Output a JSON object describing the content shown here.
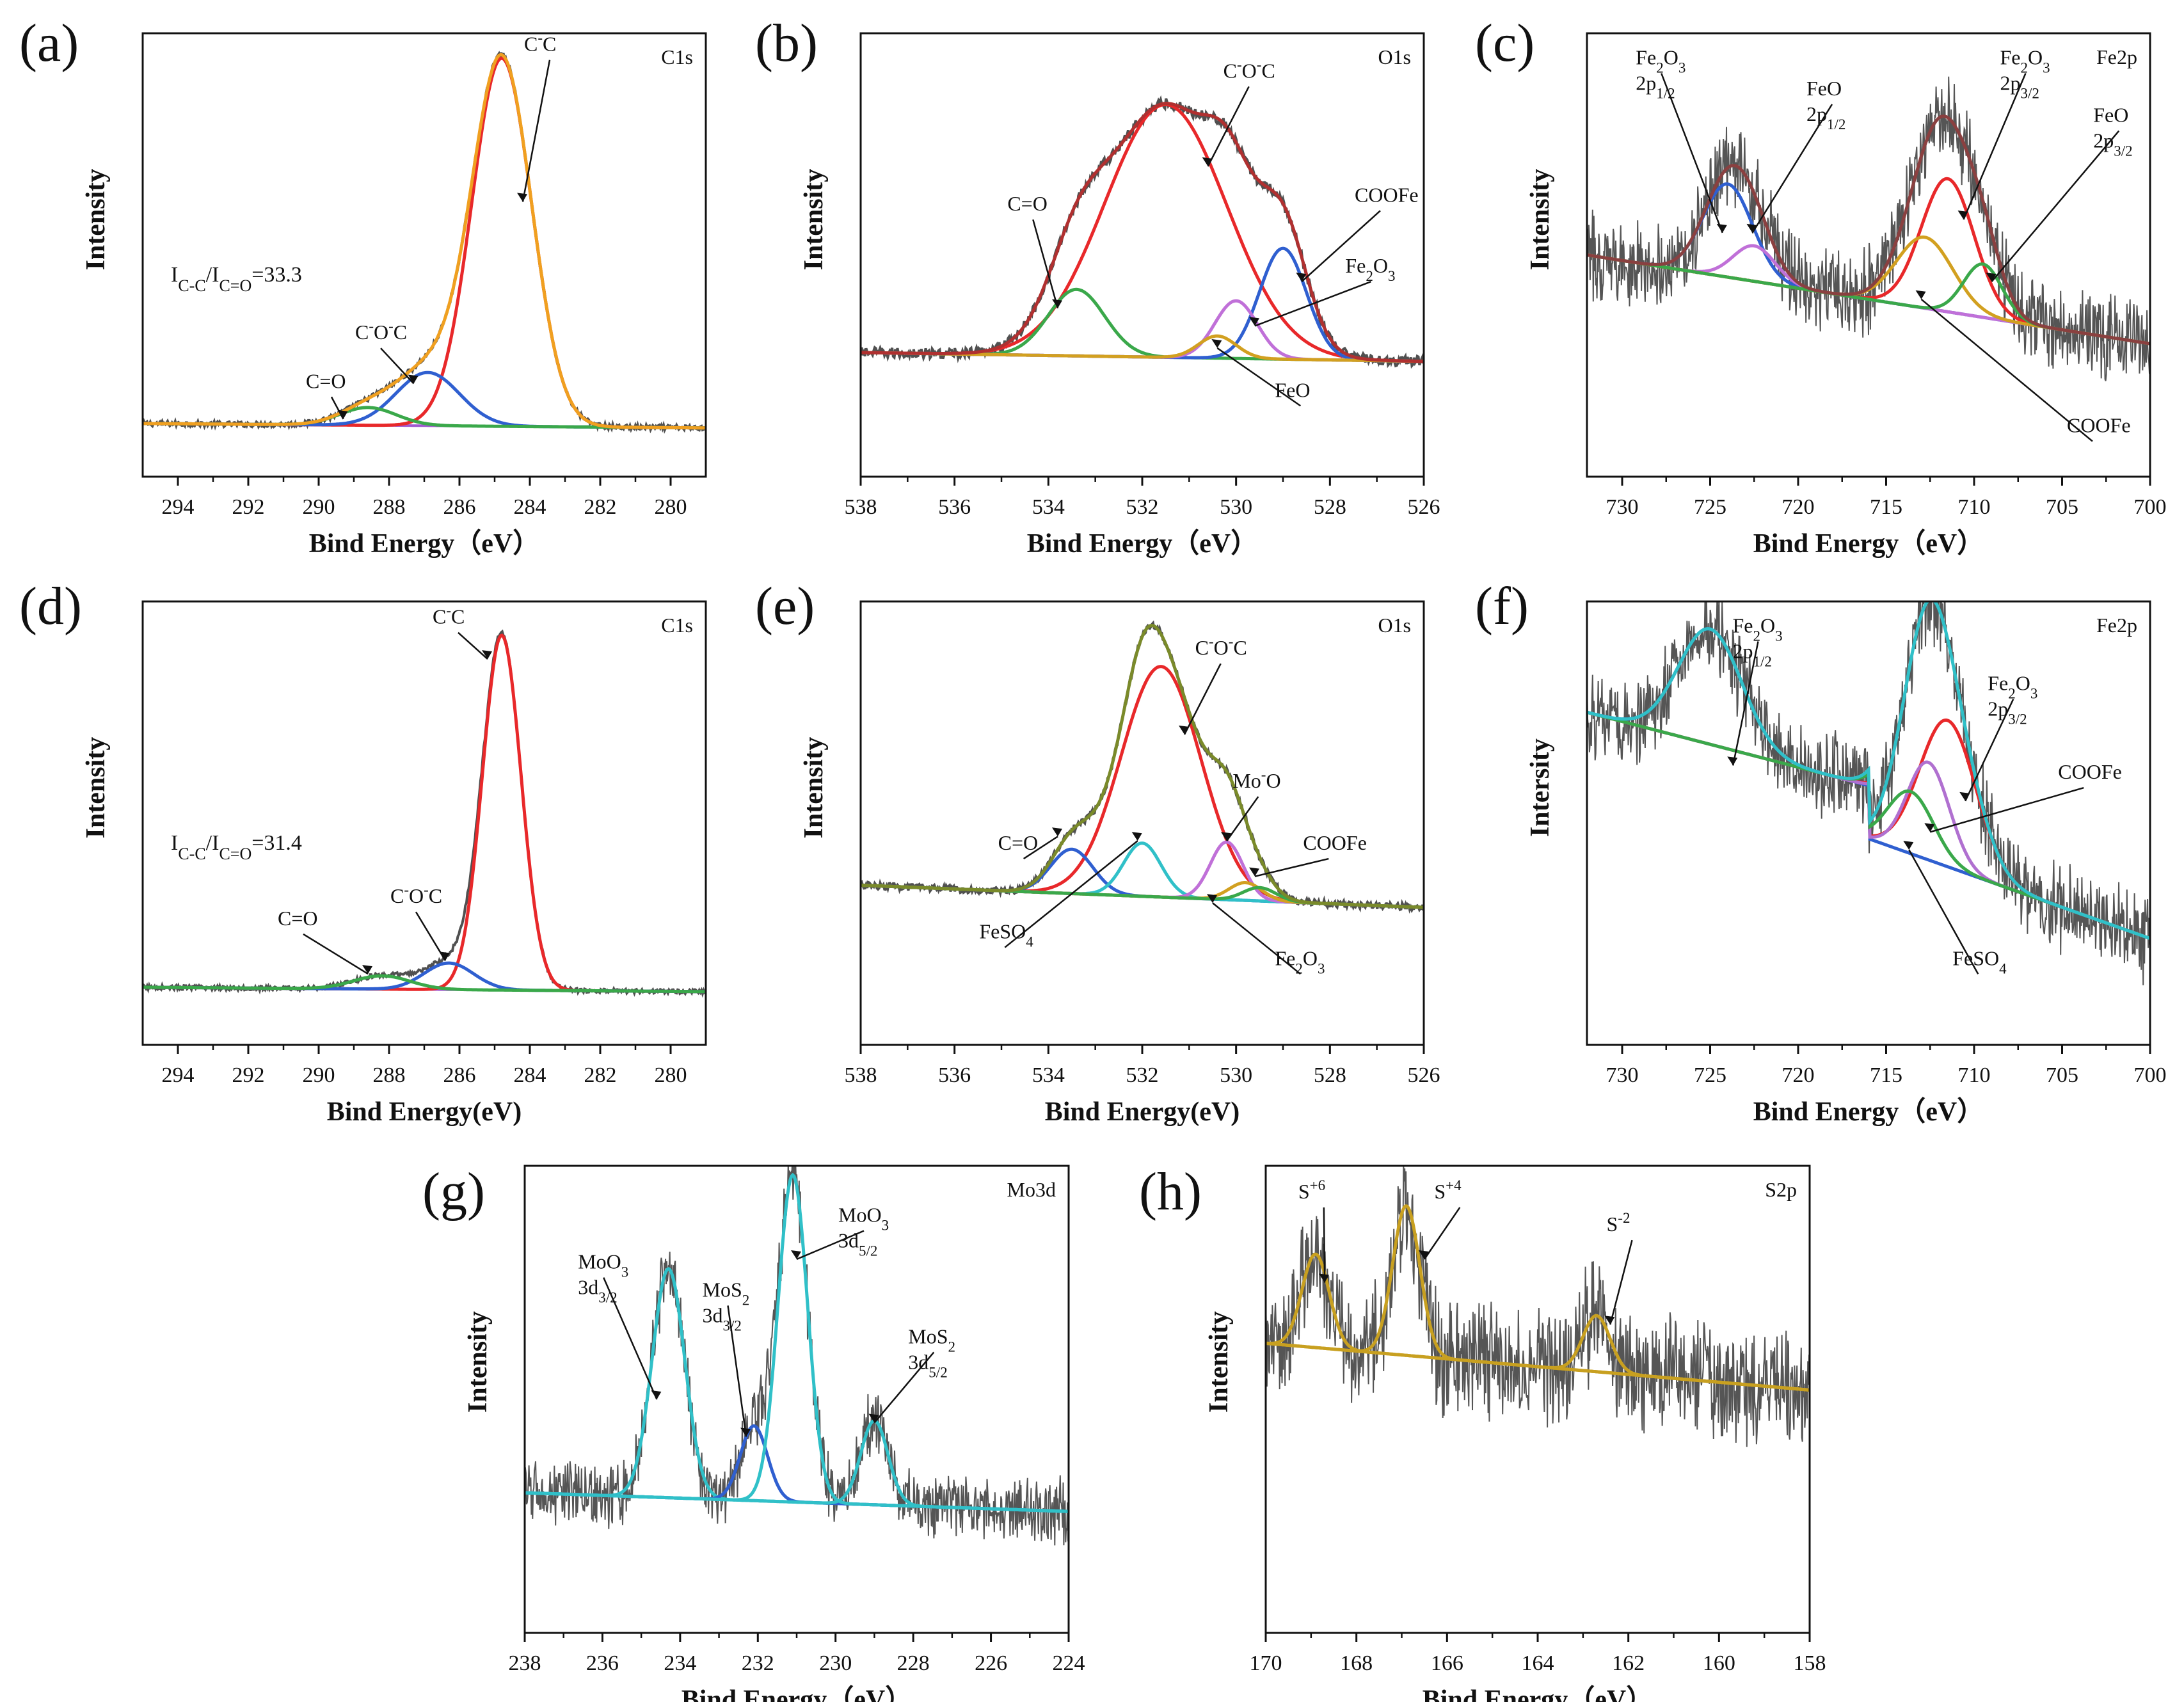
{
  "chart_data": [
    {
      "id": "a",
      "panel_label": "(a)",
      "type": "line",
      "corner_label": "C1s",
      "xlabel": "Bind Energy（eV）",
      "ylabel": "Intensity",
      "x_range": [
        295,
        279
      ],
      "x_ticks": [
        "294",
        "292",
        "290",
        "288",
        "286",
        "284",
        "282",
        "280"
      ],
      "y_range": [
        0,
        1
      ],
      "annotations": [
        {
          "text": "I",
          "sub": "C-C",
          "text2": "/I",
          "sub2": "C=O",
          "text3": "=33.3",
          "x": 294.2,
          "y": 0.44
        }
      ],
      "series": [
        {
          "name": "C-C",
          "type": "gauss",
          "center": 284.8,
          "amp": 0.83,
          "width": 0.85,
          "color": "#e8282a"
        },
        {
          "name": "C-O-C",
          "type": "gauss",
          "center": 286.9,
          "amp": 0.12,
          "width": 0.9,
          "color": "#2f5fd0"
        },
        {
          "name": "C=O",
          "type": "gauss",
          "center": 288.6,
          "amp": 0.04,
          "width": 0.8,
          "color": "#3aa84a"
        },
        {
          "name": "Background",
          "type": "baseline",
          "start": 0.12,
          "end": 0.11,
          "color": "#a05ad0"
        },
        {
          "name": "Envelope",
          "type": "envelope",
          "color": "#f0a020"
        },
        {
          "name": "Raw",
          "type": "raw",
          "noise": 0.006,
          "color": "#505050"
        }
      ],
      "labels": [
        {
          "text": "C-C",
          "x": 283.8,
          "y": 0.96,
          "tx": 284.2,
          "ty": 0.62
        },
        {
          "text": "C-O-C",
          "x": 288.6,
          "y": 0.31,
          "tx": 287.3,
          "ty": 0.21
        },
        {
          "text": "C=O",
          "x": 290.0,
          "y": 0.2,
          "tx": 289.3,
          "ty": 0.13
        }
      ]
    },
    {
      "id": "b",
      "panel_label": "(b)",
      "type": "line",
      "corner_label": "O1s",
      "xlabel": "Bind Energy（eV）",
      "ylabel": "Intensity",
      "x_range": [
        538,
        526
      ],
      "x_ticks": [
        "538",
        "536",
        "534",
        "532",
        "530",
        "528",
        "526"
      ],
      "y_range": [
        0,
        1
      ],
      "series": [
        {
          "name": "C-O-C",
          "type": "gauss",
          "center": 531.5,
          "amp": 0.57,
          "width": 1.3,
          "color": "#e8282a"
        },
        {
          "name": "C=O",
          "type": "gauss",
          "center": 533.4,
          "amp": 0.15,
          "width": 0.6,
          "color": "#3aa84a"
        },
        {
          "name": "COOFe",
          "type": "gauss",
          "center": 529.0,
          "amp": 0.25,
          "width": 0.5,
          "color": "#2f5fd0"
        },
        {
          "name": "Fe2O3",
          "type": "gauss",
          "center": 530.0,
          "amp": 0.13,
          "width": 0.45,
          "color": "#c070d8"
        },
        {
          "name": "FeO",
          "type": "gauss",
          "center": 530.4,
          "amp": 0.05,
          "width": 0.4,
          "color": "#d2a020"
        },
        {
          "name": "Background",
          "type": "baseline",
          "start": 0.28,
          "end": 0.26,
          "color": "#30c0c8"
        },
        {
          "name": "Envelope",
          "type": "envelope",
          "color": "#b03030"
        },
        {
          "name": "Raw",
          "type": "raw",
          "noise": 0.012,
          "color": "#505050"
        }
      ],
      "labels": [
        {
          "text": "C-O-C",
          "x": 530.0,
          "y": 0.9,
          "tx": 530.6,
          "ty": 0.7
        },
        {
          "text": "C=O",
          "x": 534.6,
          "y": 0.6,
          "tx": 533.8,
          "ty": 0.38
        },
        {
          "text": "COOFe",
          "x": 527.2,
          "y": 0.62,
          "tx": 528.6,
          "ty": 0.44
        },
        {
          "text": "Fe2O3",
          "x": 527.4,
          "y": 0.46,
          "tx": 529.6,
          "ty": 0.34
        },
        {
          "text": "FeO",
          "x": 528.9,
          "y": 0.18,
          "tx": 530.4,
          "ty": 0.29
        }
      ]
    },
    {
      "id": "c",
      "panel_label": "(c)",
      "type": "line",
      "corner_label": "Fe2p",
      "xlabel": "Bind Energy（eV）",
      "ylabel": "Intensity",
      "x_range": [
        732,
        700
      ],
      "x_ticks": [
        "730",
        "725",
        "720",
        "715",
        "710",
        "705",
        "700"
      ],
      "y_range": [
        0,
        1
      ],
      "series": [
        {
          "name": "Fe2O3 2p1/2",
          "type": "gauss",
          "center": 724.0,
          "amp": 0.21,
          "width": 1.4,
          "color": "#2f5fd0"
        },
        {
          "name": "FeO 2p1/2",
          "type": "gauss",
          "center": 722.5,
          "amp": 0.08,
          "width": 1.2,
          "color": "#c070d8"
        },
        {
          "name": "Fe2O3 2p3/2",
          "type": "gauss",
          "center": 711.5,
          "amp": 0.3,
          "width": 1.5,
          "color": "#e8282a"
        },
        {
          "name": "COOFe",
          "type": "gauss",
          "center": 712.8,
          "amp": 0.16,
          "width": 1.6,
          "color": "#d2a020"
        },
        {
          "name": "FeO 2p3/2",
          "type": "gauss",
          "center": 709.5,
          "amp": 0.12,
          "width": 1.1,
          "color": "#3aa84a"
        },
        {
          "name": "Background",
          "type": "baseline",
          "start": 0.5,
          "end": 0.3,
          "color": "#30c0c8"
        },
        {
          "name": "Envelope",
          "type": "envelope",
          "color": "#8a4040"
        },
        {
          "name": "Raw",
          "type": "raw",
          "noise": 0.07,
          "color": "#555555"
        }
      ],
      "labels": [
        {
          "text": "Fe2O3 2p1/2",
          "x": 728.5,
          "y": 0.93,
          "tx": 724.3,
          "ty": 0.55
        },
        {
          "text": "FeO 2p1/2",
          "x": 718.8,
          "y": 0.86,
          "tx": 722.6,
          "ty": 0.55
        },
        {
          "text": "Fe2O3 2p3/2",
          "x": 707.8,
          "y": 0.93,
          "tx": 710.6,
          "ty": 0.58
        },
        {
          "text": "FeO 2p3/2",
          "x": 702.5,
          "y": 0.8,
          "tx": 709.0,
          "ty": 0.44
        },
        {
          "text": "COOFe",
          "x": 704.0,
          "y": 0.1,
          "tx": 713.0,
          "ty": 0.4
        }
      ]
    },
    {
      "id": "d",
      "panel_label": "(d)",
      "type": "line",
      "corner_label": "C1s",
      "xlabel": "Bind Energy(eV)",
      "ylabel": "Intensity",
      "x_range": [
        295,
        279
      ],
      "x_ticks": [
        "294",
        "292",
        "290",
        "288",
        "286",
        "284",
        "282",
        "280"
      ],
      "y_range": [
        0,
        1
      ],
      "annotations": [
        {
          "text": "I",
          "sub": "C-C",
          "text2": "/I",
          "sub2": "C=O",
          "text3": "=31.4",
          "x": 294.2,
          "y": 0.44
        }
      ],
      "series": [
        {
          "name": "C-C",
          "type": "gauss",
          "center": 284.8,
          "amp": 0.8,
          "width": 0.55,
          "color": "#e8282a"
        },
        {
          "name": "C-O-C",
          "type": "gauss",
          "center": 286.3,
          "amp": 0.06,
          "width": 0.7,
          "color": "#2f5fd0"
        },
        {
          "name": "C=O",
          "type": "gauss",
          "center": 288.2,
          "amp": 0.03,
          "width": 0.8,
          "color": "#3aa84a"
        },
        {
          "name": "Background",
          "type": "baseline",
          "start": 0.13,
          "end": 0.12,
          "color": "#a05ad0"
        },
        {
          "name": "Raw",
          "type": "raw",
          "noise": 0.005,
          "color": "#505050"
        }
      ],
      "labels": [
        {
          "text": "C-C",
          "x": 286.4,
          "y": 0.95,
          "tx": 285.2,
          "ty": 0.87
        },
        {
          "text": "C-O-C",
          "x": 287.6,
          "y": 0.32,
          "tx": 286.4,
          "ty": 0.19
        },
        {
          "text": "C=O",
          "x": 290.8,
          "y": 0.27,
          "tx": 288.6,
          "ty": 0.16
        }
      ]
    },
    {
      "id": "e",
      "panel_label": "(e)",
      "type": "line",
      "corner_label": "O1s",
      "xlabel": "Bind Energy(eV)",
      "ylabel": "Intensity",
      "x_range": [
        538,
        526
      ],
      "x_ticks": [
        "538",
        "536",
        "534",
        "532",
        "530",
        "528",
        "526"
      ],
      "y_range": [
        0,
        1
      ],
      "series": [
        {
          "name": "C-O-C",
          "type": "gauss",
          "center": 531.6,
          "amp": 0.52,
          "width": 0.85,
          "color": "#e8282a"
        },
        {
          "name": "C=O",
          "type": "gauss",
          "center": 533.5,
          "amp": 0.1,
          "width": 0.45,
          "color": "#2f5fd0"
        },
        {
          "name": "FeSO4",
          "type": "gauss",
          "center": 532.0,
          "amp": 0.12,
          "width": 0.4,
          "color": "#30c0c8"
        },
        {
          "name": "Mo-O",
          "type": "gauss",
          "center": 530.2,
          "amp": 0.13,
          "width": 0.35,
          "color": "#c070d8"
        },
        {
          "name": "Fe2O3",
          "type": "gauss",
          "center": 529.8,
          "amp": 0.04,
          "width": 0.35,
          "color": "#d2a020"
        },
        {
          "name": "COOFe",
          "type": "gauss",
          "center": 529.5,
          "amp": 0.03,
          "width": 0.35,
          "color": "#3aa84a"
        },
        {
          "name": "Background",
          "type": "baseline",
          "start": 0.36,
          "end": 0.31,
          "color": "#8a4a4a"
        },
        {
          "name": "Envelope",
          "type": "envelope",
          "color": "#7a8a2a"
        },
        {
          "name": "Raw",
          "type": "raw",
          "noise": 0.008,
          "color": "#505050"
        }
      ],
      "labels": [
        {
          "text": "C-O-C",
          "x": 530.6,
          "y": 0.88,
          "tx": 531.1,
          "ty": 0.7
        },
        {
          "text": "Mo-O",
          "x": 529.8,
          "y": 0.58,
          "tx": 530.2,
          "ty": 0.46
        },
        {
          "text": "COOFe",
          "x": 528.3,
          "y": 0.44,
          "tx": 529.6,
          "ty": 0.38
        },
        {
          "text": "C=O",
          "x": 534.8,
          "y": 0.44,
          "tx": 533.8,
          "ty": 0.47
        },
        {
          "text": "FeSO4",
          "x": 535.2,
          "y": 0.24,
          "tx": 532.1,
          "ty": 0.46
        },
        {
          "text": "Fe2O3",
          "x": 528.9,
          "y": 0.18,
          "tx": 530.5,
          "ty": 0.32
        }
      ]
    },
    {
      "id": "f",
      "panel_label": "(f)",
      "type": "line",
      "corner_label": "Fe2p",
      "xlabel": "Bind Energy（eV）",
      "ylabel": "Intersity",
      "x_range": [
        732,
        700
      ],
      "x_ticks": [
        "730",
        "725",
        "720",
        "715",
        "710",
        "705",
        "700"
      ],
      "y_range": [
        0,
        1
      ],
      "series": [
        {
          "name": "Fe2O3 2p1/2",
          "type": "gauss",
          "center": 725.0,
          "amp": 0.26,
          "width": 1.8,
          "color": "#2f5fd0"
        },
        {
          "name": "Fe2O3 2p3/2",
          "type": "gauss",
          "center": 711.5,
          "amp": 0.33,
          "width": 1.6,
          "color": "#e8282a"
        },
        {
          "name": "FeSO4",
          "type": "gauss",
          "center": 712.6,
          "amp": 0.22,
          "width": 1.2,
          "color": "#b070d0"
        },
        {
          "name": "COOFe",
          "type": "gauss",
          "center": 713.6,
          "amp": 0.14,
          "width": 1.3,
          "color": "#3aa84a"
        },
        {
          "name": "Background",
          "type": "fe-bg",
          "color": "#c8a020"
        },
        {
          "name": "Envelope",
          "type": "envelope",
          "color": "#30c0c8"
        },
        {
          "name": "Raw",
          "type": "raw",
          "noise": 0.07,
          "color": "#555555"
        }
      ],
      "labels": [
        {
          "text": "Fe2O3 2p1/2",
          "x": 723.0,
          "y": 0.93,
          "tx": 723.7,
          "ty": 0.63
        },
        {
          "text": "Fe2O3 2p3/2",
          "x": 708.5,
          "y": 0.8,
          "tx": 710.5,
          "ty": 0.55
        },
        {
          "text": "COOFe",
          "x": 704.5,
          "y": 0.6,
          "tx": 712.5,
          "ty": 0.48
        },
        {
          "text": "FeSO4",
          "x": 710.5,
          "y": 0.18,
          "tx": 713.7,
          "ty": 0.44
        }
      ]
    },
    {
      "id": "g",
      "panel_label": "(g)",
      "type": "line",
      "corner_label": "Mo3d",
      "xlabel": "Bind Energy（eV）",
      "ylabel": "Intensity",
      "x_range": [
        238,
        224
      ],
      "x_ticks": [
        "238",
        "236",
        "234",
        "232",
        "230",
        "228",
        "226",
        "224"
      ],
      "y_range": [
        0,
        1
      ],
      "series": [
        {
          "name": "MoO3 3d3/2",
          "type": "gauss",
          "center": 234.3,
          "amp": 0.49,
          "width": 0.42,
          "color": "#30c0c8"
        },
        {
          "name": "MoS2 3d3/2",
          "type": "gauss",
          "center": 232.1,
          "amp": 0.16,
          "width": 0.35,
          "color": "#2f5fd0"
        },
        {
          "name": "MoO3 3d5/2",
          "type": "gauss",
          "center": 231.1,
          "amp": 0.7,
          "width": 0.38,
          "color": "#30c0c8"
        },
        {
          "name": "MoS2 3d5/2",
          "type": "gauss",
          "center": 229.0,
          "amp": 0.18,
          "width": 0.35,
          "color": "#30c0c8"
        },
        {
          "name": "Background",
          "type": "baseline",
          "start": 0.3,
          "end": 0.26,
          "color": "#c8a020"
        },
        {
          "name": "Raw",
          "type": "raw",
          "noise": 0.05,
          "color": "#555555"
        }
      ],
      "labels": [
        {
          "text": "MoO3 3d3/2",
          "x": 236.3,
          "y": 0.78,
          "tx": 234.6,
          "ty": 0.5
        },
        {
          "text": "MoS2 3d3/2",
          "x": 233.1,
          "y": 0.72,
          "tx": 232.3,
          "ty": 0.42
        },
        {
          "text": "MoO3 3d5/2",
          "x": 229.6,
          "y": 0.88,
          "tx": 231.0,
          "ty": 0.8
        },
        {
          "text": "MoS2 3d5/2",
          "x": 227.8,
          "y": 0.62,
          "tx": 229.0,
          "ty": 0.45
        }
      ]
    },
    {
      "id": "h",
      "panel_label": "(h)",
      "type": "line",
      "corner_label": "S2p",
      "xlabel": "Bind Energy（eV）",
      "ylabel": "Intensity",
      "x_range": [
        170,
        158
      ],
      "x_ticks": [
        "170",
        "168",
        "166",
        "164",
        "162",
        "160",
        "158"
      ],
      "y_range": [
        0,
        1
      ],
      "series": [
        {
          "name": "S+6",
          "type": "gauss",
          "center": 168.9,
          "amp": 0.2,
          "width": 0.3,
          "color": "#c8a020"
        },
        {
          "name": "S+4",
          "type": "gauss",
          "center": 166.9,
          "amp": 0.32,
          "width": 0.3,
          "color": "#c8a020"
        },
        {
          "name": "S-2",
          "type": "gauss",
          "center": 162.7,
          "amp": 0.12,
          "width": 0.3,
          "color": "#c8a020"
        },
        {
          "name": "Background",
          "type": "baseline",
          "start": 0.62,
          "end": 0.52,
          "color": "#a05ad0"
        },
        {
          "name": "Raw",
          "type": "raw",
          "noise": 0.09,
          "color": "#555555"
        }
      ],
      "labels": [
        {
          "text": "S+6",
          "x": 169.0,
          "y": 0.93,
          "tx": 168.7,
          "ty": 0.75
        },
        {
          "text": "S+4",
          "x": 166.0,
          "y": 0.93,
          "tx": 166.5,
          "ty": 0.8
        },
        {
          "text": "S-2",
          "x": 162.2,
          "y": 0.86,
          "tx": 162.4,
          "ty": 0.66
        }
      ]
    }
  ]
}
